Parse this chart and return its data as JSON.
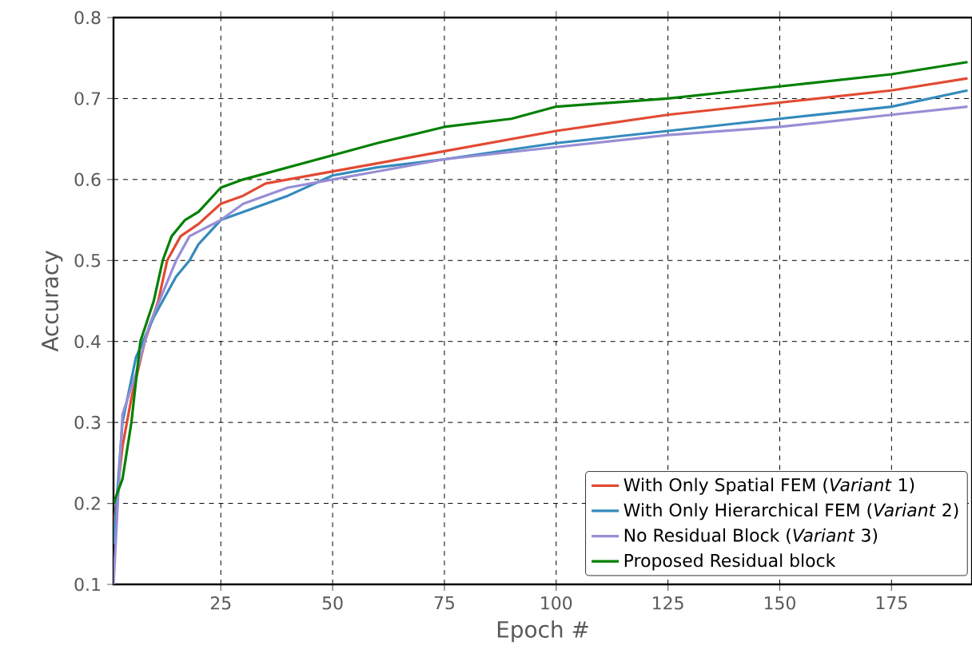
{
  "chart_data": {
    "type": "line",
    "xlabel": "Epoch #",
    "ylabel": "Accuracy",
    "xlim": [
      1,
      193
    ],
    "ylim": [
      0.1,
      0.8
    ],
    "xticks": [
      25,
      50,
      75,
      100,
      125,
      150,
      175
    ],
    "yticks": [
      0.1,
      0.2,
      0.3,
      0.4,
      0.5,
      0.6,
      0.7,
      0.8
    ],
    "grid": true,
    "legend": "bottom right",
    "series": [
      {
        "name": "With Only Spatial FEM (*Variant* 1)",
        "color": "#e24a33",
        "x": [
          1,
          3,
          5,
          8,
          11,
          13,
          16,
          20,
          25,
          30,
          35,
          50,
          60,
          75,
          100,
          125,
          150,
          175,
          192
        ],
        "values": [
          0.17,
          0.27,
          0.33,
          0.4,
          0.45,
          0.5,
          0.53,
          0.545,
          0.57,
          0.58,
          0.595,
          0.61,
          0.62,
          0.635,
          0.66,
          0.68,
          0.695,
          0.71,
          0.725
        ]
      },
      {
        "name": "With Only Hierarchical FEM (*Variant* 2)",
        "color": "#348abd",
        "x": [
          1,
          3,
          6,
          10,
          15,
          18,
          20,
          25,
          30,
          40,
          50,
          60,
          75,
          100,
          125,
          150,
          175,
          192
        ],
        "values": [
          0.15,
          0.3,
          0.38,
          0.43,
          0.48,
          0.5,
          0.52,
          0.55,
          0.56,
          0.58,
          0.605,
          0.615,
          0.625,
          0.645,
          0.66,
          0.675,
          0.69,
          0.71
        ]
      },
      {
        "name": "No Residual Block (*Variant* 3)",
        "color": "#988ed5",
        "x": [
          1,
          3,
          6,
          9,
          12,
          15,
          18,
          25,
          30,
          40,
          50,
          60,
          75,
          100,
          125,
          150,
          175,
          192
        ],
        "values": [
          0.1,
          0.31,
          0.36,
          0.42,
          0.46,
          0.5,
          0.53,
          0.55,
          0.57,
          0.59,
          0.6,
          0.61,
          0.625,
          0.64,
          0.655,
          0.665,
          0.68,
          0.69
        ]
      },
      {
        "name": "Proposed Residual block",
        "color": "#008000",
        "x": [
          1,
          3,
          5,
          7,
          10,
          12,
          14,
          17,
          20,
          25,
          30,
          40,
          50,
          60,
          75,
          90,
          100,
          125,
          150,
          175,
          192
        ],
        "values": [
          0.2,
          0.23,
          0.3,
          0.4,
          0.45,
          0.5,
          0.53,
          0.55,
          0.56,
          0.59,
          0.6,
          0.615,
          0.63,
          0.645,
          0.665,
          0.675,
          0.69,
          0.7,
          0.715,
          0.73,
          0.745
        ]
      }
    ]
  }
}
